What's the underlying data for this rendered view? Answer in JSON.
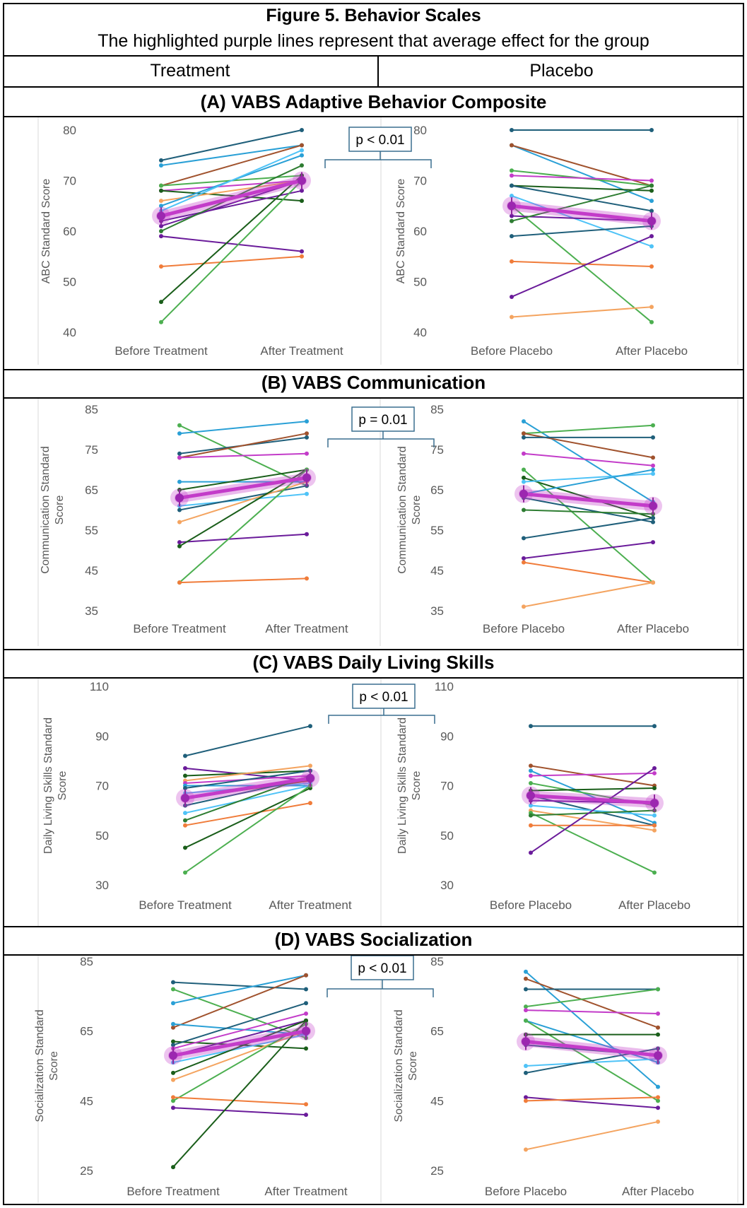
{
  "figure": {
    "title": "Figure 5. Behavior Scales",
    "subtitle": "The highlighted purple lines represent that average effect for the group",
    "col_treatment": "Treatment",
    "col_placebo": "Placebo"
  },
  "colors": {
    "mean": "#c33cc9",
    "bracket": "#3a6f8f",
    "axis_text": "#595959"
  },
  "chart_data": [
    {
      "type": "line",
      "section": "(A) VABS Adaptive Behavior Composite",
      "pvalue": "p < 0.01",
      "ylabel": "ABC Standard Score",
      "ylim": [
        40,
        80
      ],
      "yticks": [
        "80",
        "70",
        "60",
        "50",
        "40"
      ],
      "treatment": {
        "categories": [
          "Before Treatment",
          "After Treatment"
        ],
        "lines": [
          [
            74,
            80,
            "#1f5f7a"
          ],
          [
            73,
            77,
            "#2aa0d6"
          ],
          [
            69,
            77,
            "#a0522d"
          ],
          [
            69,
            71,
            "#4caf50"
          ],
          [
            68,
            70,
            "#c33cc9"
          ],
          [
            68,
            66,
            "#1a5e1a"
          ],
          [
            66,
            70,
            "#f4a460"
          ],
          [
            65,
            75,
            "#2aa0d6"
          ],
          [
            64,
            76,
            "#4fc3f7"
          ],
          [
            62,
            68,
            "#6a1b9a"
          ],
          [
            61,
            70,
            "#6a1b9a"
          ],
          [
            60,
            73,
            "#2e7d32"
          ],
          [
            59,
            56,
            "#6a1b9a"
          ],
          [
            53,
            55,
            "#f07c3a"
          ],
          [
            46,
            71,
            "#1a5e1a"
          ],
          [
            42,
            70,
            "#4caf50"
          ]
        ],
        "mean": [
          63,
          70
        ]
      },
      "placebo": {
        "categories": [
          "Before Placebo",
          "After Placebo"
        ],
        "lines": [
          [
            80,
            80,
            "#1f5f7a"
          ],
          [
            77,
            66,
            "#2aa0d6"
          ],
          [
            77,
            69,
            "#a0522d"
          ],
          [
            72,
            69,
            "#4caf50"
          ],
          [
            71,
            70,
            "#c33cc9"
          ],
          [
            69,
            68,
            "#1a5e1a"
          ],
          [
            69,
            64,
            "#1f5f7a"
          ],
          [
            67,
            57,
            "#4fc3f7"
          ],
          [
            65,
            42,
            "#4caf50"
          ],
          [
            63,
            62,
            "#6a1b9a"
          ],
          [
            62,
            69,
            "#2e7d32"
          ],
          [
            59,
            61,
            "#1f5f7a"
          ],
          [
            54,
            53,
            "#f07c3a"
          ],
          [
            47,
            59,
            "#6a1b9a"
          ],
          [
            43,
            45,
            "#f4a460"
          ]
        ],
        "mean": [
          65,
          62
        ]
      }
    },
    {
      "type": "line",
      "section": "(B) VABS Communication",
      "pvalue": "p = 0.01",
      "ylabel": "Communication Standard Score",
      "ylim": [
        35,
        85
      ],
      "yticks": [
        "85",
        "75",
        "65",
        "55",
        "45",
        "35"
      ],
      "treatment": {
        "categories": [
          "Before Treatment",
          "After Treatment"
        ],
        "lines": [
          [
            81,
            66,
            "#4caf50"
          ],
          [
            79,
            82,
            "#2aa0d6"
          ],
          [
            74,
            78,
            "#1f5f7a"
          ],
          [
            73,
            79,
            "#a0522d"
          ],
          [
            73,
            74,
            "#c33cc9"
          ],
          [
            67,
            67,
            "#2aa0d6"
          ],
          [
            65,
            70,
            "#1a5e1a"
          ],
          [
            61,
            64,
            "#4fc3f7"
          ],
          [
            60,
            66,
            "#1f5f7a"
          ],
          [
            57,
            67,
            "#f4a460"
          ],
          [
            52,
            54,
            "#6a1b9a"
          ],
          [
            51,
            70,
            "#1a5e1a"
          ],
          [
            42,
            70,
            "#4caf50"
          ],
          [
            42,
            43,
            "#f07c3a"
          ]
        ],
        "mean": [
          63,
          68
        ]
      },
      "placebo": {
        "categories": [
          "Before Placebo",
          "After Placebo"
        ],
        "lines": [
          [
            82,
            62,
            "#2aa0d6"
          ],
          [
            79,
            81,
            "#4caf50"
          ],
          [
            79,
            73,
            "#a0522d"
          ],
          [
            78,
            78,
            "#1f5f7a"
          ],
          [
            74,
            71,
            "#c33cc9"
          ],
          [
            70,
            42,
            "#4caf50"
          ],
          [
            68,
            58,
            "#1a5e1a"
          ],
          [
            67,
            69,
            "#4fc3f7"
          ],
          [
            64,
            70,
            "#2aa0d6"
          ],
          [
            63,
            57,
            "#1f5f7a"
          ],
          [
            60,
            59,
            "#2e7d32"
          ],
          [
            53,
            58,
            "#1f5f7a"
          ],
          [
            48,
            52,
            "#6a1b9a"
          ],
          [
            47,
            42,
            "#f07c3a"
          ],
          [
            36,
            42,
            "#f4a460"
          ]
        ],
        "mean": [
          64,
          61
        ]
      }
    },
    {
      "type": "line",
      "section": "(C) VABS Daily Living Skills",
      "pvalue": "p < 0.01",
      "ylabel": "Daily Living Skills Standard Score",
      "ylim": [
        30,
        110
      ],
      "yticks": [
        "110",
        "90",
        "70",
        "50",
        "30"
      ],
      "treatment": {
        "categories": [
          "Before Treatment",
          "After Treatment"
        ],
        "lines": [
          [
            82,
            94,
            "#1f5f7a"
          ],
          [
            77,
            72,
            "#6a1b9a"
          ],
          [
            74,
            76,
            "#1a5e1a"
          ],
          [
            72,
            78,
            "#f4a460"
          ],
          [
            71,
            74,
            "#c33cc9"
          ],
          [
            70,
            70,
            "#2aa0d6"
          ],
          [
            69,
            76,
            "#1f5f7a"
          ],
          [
            67,
            71,
            "#4fc3f7"
          ],
          [
            65,
            72,
            "#a0522d"
          ],
          [
            62,
            73,
            "#1f5f7a"
          ],
          [
            59,
            70,
            "#4fc3f7"
          ],
          [
            56,
            74,
            "#2e7d32"
          ],
          [
            54,
            63,
            "#f07c3a"
          ],
          [
            45,
            69,
            "#1a5e1a"
          ],
          [
            35,
            70,
            "#4caf50"
          ]
        ],
        "mean": [
          65,
          73
        ]
      },
      "placebo": {
        "categories": [
          "Before Placebo",
          "After Placebo"
        ],
        "lines": [
          [
            94,
            94,
            "#1f5f7a"
          ],
          [
            78,
            70,
            "#a0522d"
          ],
          [
            76,
            55,
            "#2aa0d6"
          ],
          [
            74,
            75,
            "#c33cc9"
          ],
          [
            71,
            62,
            "#4caf50"
          ],
          [
            68,
            69,
            "#1a5e1a"
          ],
          [
            66,
            54,
            "#1f5f7a"
          ],
          [
            64,
            63,
            "#6a1b9a"
          ],
          [
            62,
            58,
            "#4fc3f7"
          ],
          [
            60,
            52,
            "#f4a460"
          ],
          [
            59,
            35,
            "#4caf50"
          ],
          [
            58,
            60,
            "#2e7d32"
          ],
          [
            54,
            54,
            "#f07c3a"
          ],
          [
            43,
            77,
            "#6a1b9a"
          ]
        ],
        "mean": [
          66,
          63
        ]
      }
    },
    {
      "type": "line",
      "section": "(D) VABS Socialization",
      "pvalue": "p < 0.01",
      "ylabel": "Socialization Standard Score",
      "ylim": [
        25,
        85
      ],
      "yticks": [
        "85",
        "65",
        "45",
        "25"
      ],
      "treatment": {
        "categories": [
          "Before Treatment",
          "After Treatment"
        ],
        "lines": [
          [
            79,
            77,
            "#1f5f7a"
          ],
          [
            77,
            63,
            "#4caf50"
          ],
          [
            73,
            81,
            "#2aa0d6"
          ],
          [
            66,
            81,
            "#a0522d"
          ],
          [
            67,
            64,
            "#2aa0d6"
          ],
          [
            62,
            60,
            "#1a5e1a"
          ],
          [
            61,
            73,
            "#1f5f7a"
          ],
          [
            60,
            70,
            "#c33cc9"
          ],
          [
            58,
            68,
            "#6a1b9a"
          ],
          [
            56,
            64,
            "#4fc3f7"
          ],
          [
            53,
            68,
            "#1a5e1a"
          ],
          [
            51,
            65,
            "#f4a460"
          ],
          [
            45,
            67,
            "#4caf50"
          ],
          [
            46,
            44,
            "#f07c3a"
          ],
          [
            43,
            41,
            "#6a1b9a"
          ],
          [
            26,
            68,
            "#1a5e1a"
          ]
        ],
        "mean": [
          58,
          65
        ]
      },
      "placebo": {
        "categories": [
          "Before Placebo",
          "After Placebo"
        ],
        "lines": [
          [
            82,
            49,
            "#2aa0d6"
          ],
          [
            80,
            66,
            "#a0522d"
          ],
          [
            77,
            77,
            "#1f5f7a"
          ],
          [
            72,
            77,
            "#4caf50"
          ],
          [
            71,
            70,
            "#c33cc9"
          ],
          [
            68,
            56,
            "#2aa0d6"
          ],
          [
            68,
            45,
            "#4caf50"
          ],
          [
            64,
            64,
            "#1a5e1a"
          ],
          [
            61,
            58,
            "#1f5f7a"
          ],
          [
            55,
            57,
            "#4fc3f7"
          ],
          [
            53,
            60,
            "#1f5f7a"
          ],
          [
            46,
            43,
            "#6a1b9a"
          ],
          [
            45,
            46,
            "#f07c3a"
          ],
          [
            31,
            39,
            "#f4a460"
          ]
        ],
        "mean": [
          62,
          58
        ]
      }
    }
  ]
}
